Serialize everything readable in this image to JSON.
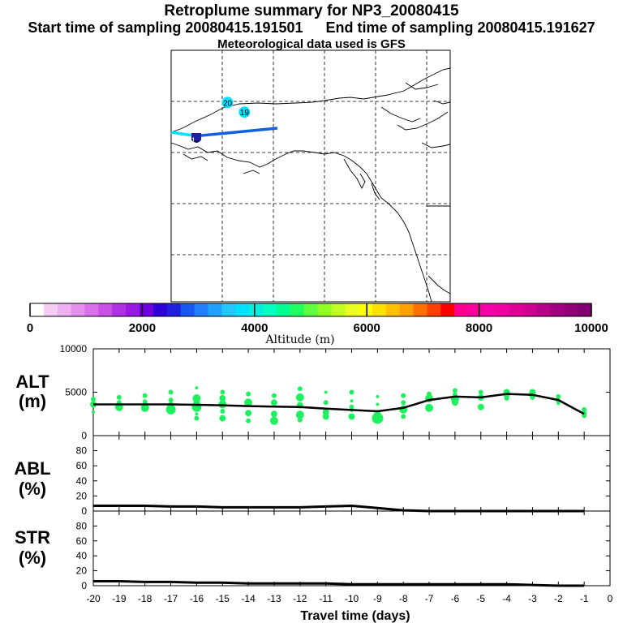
{
  "header": {
    "title": "Retroplume summary for NP3_20080415",
    "start_time": "Start time of sampling 20080415.191501",
    "end_time": "End time of sampling 20080415.191627",
    "met_data": "Meteorological data used is GFS"
  },
  "map": {
    "day_markers": [
      {
        "label": "20",
        "lon": -152,
        "lat": 70.5
      },
      {
        "label": "19",
        "lon": -149,
        "lat": 69.3
      }
    ],
    "trajectory_color": "#1060e0",
    "marker_color": "#00e0ff"
  },
  "colorbar": {
    "tick_labels": [
      "0",
      "2000",
      "4000",
      "6000",
      "8000",
      "10000"
    ],
    "label": "Altitude (m)",
    "colors": [
      "#ffffff",
      "#f4ccf4",
      "#eeb0f0",
      "#e490ee",
      "#d870ea",
      "#c850e6",
      "#b030e4",
      "#9818e6",
      "#7000e0",
      "#3000d8",
      "#2020e0",
      "#1858f0",
      "#2080ff",
      "#20a0ff",
      "#20c8ff",
      "#00e0ff",
      "#00f0e0",
      "#00ffc0",
      "#00ff90",
      "#20ff60",
      "#60ff40",
      "#90ff20",
      "#c0ff20",
      "#e8ff20",
      "#ffff00",
      "#ffe000",
      "#ffc000",
      "#ffa000",
      "#ff7000",
      "#ff4000",
      "#ff0000",
      "#ff0090",
      "#ff00a0",
      "#f800a8",
      "#f000a0",
      "#e00098",
      "#d00090",
      "#b80088",
      "#a00080",
      "#900078",
      "#800070"
    ]
  },
  "chart_data": [
    {
      "type": "line",
      "title": "ALT",
      "ylabel": "(m)",
      "xlabel": "Travel time (days)",
      "ylim": [
        0,
        10000
      ],
      "yticks": [
        "10000",
        "5000",
        "0"
      ],
      "x": [
        -20,
        -19,
        -18,
        -17,
        -16,
        -15,
        -14,
        -13,
        -12,
        -11,
        -10,
        -9,
        -8,
        -7,
        -6,
        -5,
        -4,
        -3,
        -2,
        -1
      ],
      "series": [
        {
          "name": "median altitude",
          "values": [
            3600,
            3600,
            3600,
            3600,
            3550,
            3500,
            3400,
            3350,
            3300,
            3100,
            2950,
            2800,
            3200,
            4100,
            4500,
            4400,
            4800,
            4700,
            4100,
            2500
          ]
        },
        {
          "name": "plume particles (x, altitude, size)",
          "points": [
            [
              -20,
              4200,
              3
            ],
            [
              -20,
              3600,
              4
            ],
            [
              -20,
              2700,
              2
            ],
            [
              -19,
              4400,
              3
            ],
            [
              -19,
              3800,
              3
            ],
            [
              -19,
              3300,
              5
            ],
            [
              -19,
              3000,
              2
            ],
            [
              -18,
              4600,
              3
            ],
            [
              -18,
              3900,
              3
            ],
            [
              -18,
              3200,
              5
            ],
            [
              -17,
              5000,
              3
            ],
            [
              -17,
              4100,
              3
            ],
            [
              -17,
              3500,
              4
            ],
            [
              -17,
              3000,
              6
            ],
            [
              -16,
              5500,
              2
            ],
            [
              -16,
              4300,
              5
            ],
            [
              -16,
              3800,
              4
            ],
            [
              -16,
              3300,
              6
            ],
            [
              -16,
              2500,
              2
            ],
            [
              -16,
              2000,
              3
            ],
            [
              -15,
              5000,
              3
            ],
            [
              -15,
              4300,
              4
            ],
            [
              -15,
              3600,
              5
            ],
            [
              -15,
              2800,
              3
            ],
            [
              -15,
              2000,
              4
            ],
            [
              -14,
              4800,
              3
            ],
            [
              -14,
              3800,
              5
            ],
            [
              -14,
              2600,
              4
            ],
            [
              -14,
              1700,
              3
            ],
            [
              -13,
              4600,
              3
            ],
            [
              -13,
              3800,
              4
            ],
            [
              -13,
              2500,
              4
            ],
            [
              -13,
              1700,
              5
            ],
            [
              -12,
              5400,
              3
            ],
            [
              -12,
              4400,
              5
            ],
            [
              -12,
              3500,
              4
            ],
            [
              -12,
              2400,
              5
            ],
            [
              -12,
              1800,
              3
            ],
            [
              -11,
              5000,
              2
            ],
            [
              -11,
              3800,
              3
            ],
            [
              -11,
              2700,
              4
            ],
            [
              -11,
              2200,
              4
            ],
            [
              -10,
              5000,
              3
            ],
            [
              -10,
              4000,
              2
            ],
            [
              -10,
              3300,
              3
            ],
            [
              -10,
              2900,
              2
            ],
            [
              -10,
              2200,
              4
            ],
            [
              -9,
              4500,
              2
            ],
            [
              -9,
              3600,
              2
            ],
            [
              -9,
              2600,
              4
            ],
            [
              -9,
              2000,
              7
            ],
            [
              -8,
              4600,
              3
            ],
            [
              -8,
              3800,
              3
            ],
            [
              -8,
              3000,
              5
            ],
            [
              -8,
              2200,
              3
            ],
            [
              -7,
              4800,
              3
            ],
            [
              -7,
              4300,
              5
            ],
            [
              -7,
              3200,
              5
            ],
            [
              -6,
              5200,
              3
            ],
            [
              -6,
              4700,
              3
            ],
            [
              -6,
              4200,
              5
            ],
            [
              -6,
              3800,
              4
            ],
            [
              -5,
              5000,
              3
            ],
            [
              -5,
              4400,
              4
            ],
            [
              -5,
              3300,
              4
            ],
            [
              -4,
              5000,
              4
            ],
            [
              -4,
              4700,
              4
            ],
            [
              -4,
              4300,
              3
            ],
            [
              -3,
              5000,
              4
            ],
            [
              -3,
              4700,
              4
            ],
            [
              -3,
              4400,
              3
            ],
            [
              -2,
              4500,
              3
            ],
            [
              -2,
              4000,
              3
            ],
            [
              -2,
              3700,
              2
            ],
            [
              -1,
              3000,
              3
            ],
            [
              -1,
              2600,
              3
            ],
            [
              -1,
              2300,
              3
            ]
          ]
        }
      ]
    },
    {
      "type": "line",
      "title": "ABL",
      "ylabel": "(%)",
      "ylim": [
        0,
        100
      ],
      "yticks": [
        "80",
        "60",
        "40",
        "20",
        "0"
      ],
      "x": [
        -20,
        -19,
        -18,
        -17,
        -16,
        -15,
        -14,
        -13,
        -12,
        -11,
        -10,
        -9,
        -8,
        -7,
        -6,
        -5,
        -4,
        -3,
        -2,
        -1
      ],
      "values": [
        7,
        7,
        7,
        6,
        6,
        5,
        5,
        5,
        5,
        6,
        7,
        4,
        1,
        0,
        0,
        0,
        0,
        0,
        0,
        0
      ]
    },
    {
      "type": "line",
      "title": "STR",
      "ylabel": "(%)",
      "xlabel": "Travel time (days)",
      "ylim": [
        0,
        100
      ],
      "yticks": [
        "80",
        "60",
        "40",
        "20",
        "0"
      ],
      "xticks": [
        "-20",
        "-19",
        "-18",
        "-17",
        "-16",
        "-15",
        "-14",
        "-13",
        "-12",
        "-11",
        "-10",
        "-9",
        "-8",
        "-7",
        "-6",
        "-5",
        "-4",
        "-3",
        "-2",
        "-1",
        "0"
      ],
      "x": [
        -20,
        -19,
        -18,
        -17,
        -16,
        -15,
        -14,
        -13,
        -12,
        -11,
        -10,
        -9,
        -8,
        -7,
        -6,
        -5,
        -4,
        -3,
        -2,
        -1
      ],
      "values": [
        6,
        6,
        5,
        5,
        4,
        4,
        3,
        3,
        3,
        3,
        2,
        2,
        2,
        2,
        2,
        2,
        2,
        1,
        0,
        0
      ]
    }
  ]
}
